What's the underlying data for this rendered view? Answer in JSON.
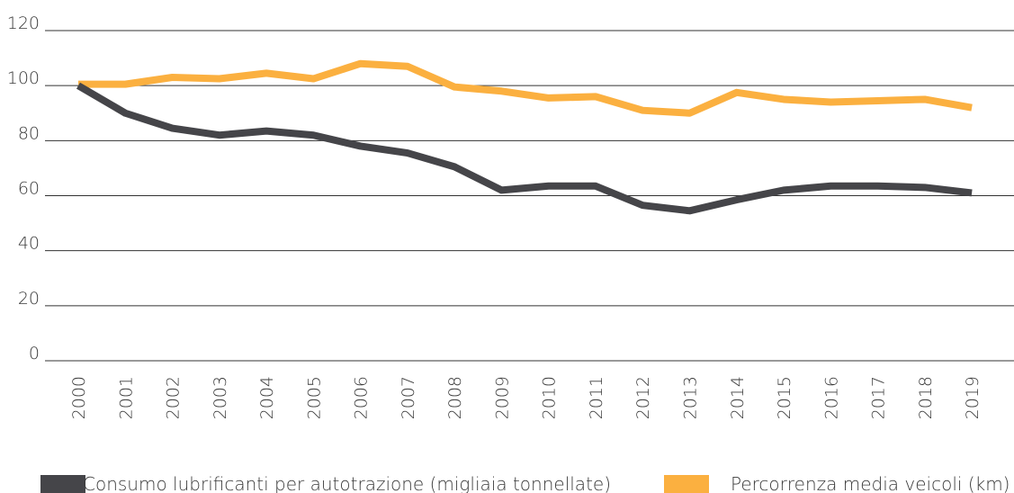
{
  "chart_data": {
    "type": "line",
    "categories": [
      "2000",
      "2001",
      "2002",
      "2003",
      "2004",
      "2005",
      "2006",
      "2007",
      "2008",
      "2009",
      "2010",
      "2011",
      "2012",
      "2013",
      "2014",
      "2015",
      "2016",
      "2017",
      "2018",
      "2019"
    ],
    "series": [
      {
        "name": "Consumo lubrificanti per autotrazione (migliaia tonnellate)",
        "color": "#454549",
        "values": [
          100,
          90,
          84.5,
          82,
          83.5,
          82,
          78,
          75.5,
          70.5,
          62,
          63.5,
          63.5,
          56.5,
          54.5,
          58.5,
          62,
          63.5,
          63.5,
          63,
          61
        ]
      },
      {
        "name": "Percorrenza media veicoli (km)",
        "color": "#fbb040",
        "values": [
          100.5,
          100.5,
          103,
          102.5,
          104.5,
          102.5,
          108,
          107,
          99.5,
          98,
          95.5,
          96,
          91,
          90,
          97.5,
          95,
          94,
          94.5,
          95,
          92
        ]
      }
    ],
    "ylim": [
      0,
      120
    ],
    "yticks": [
      0,
      20,
      40,
      60,
      80,
      100,
      120
    ],
    "grid": true,
    "legend": "bottom"
  }
}
